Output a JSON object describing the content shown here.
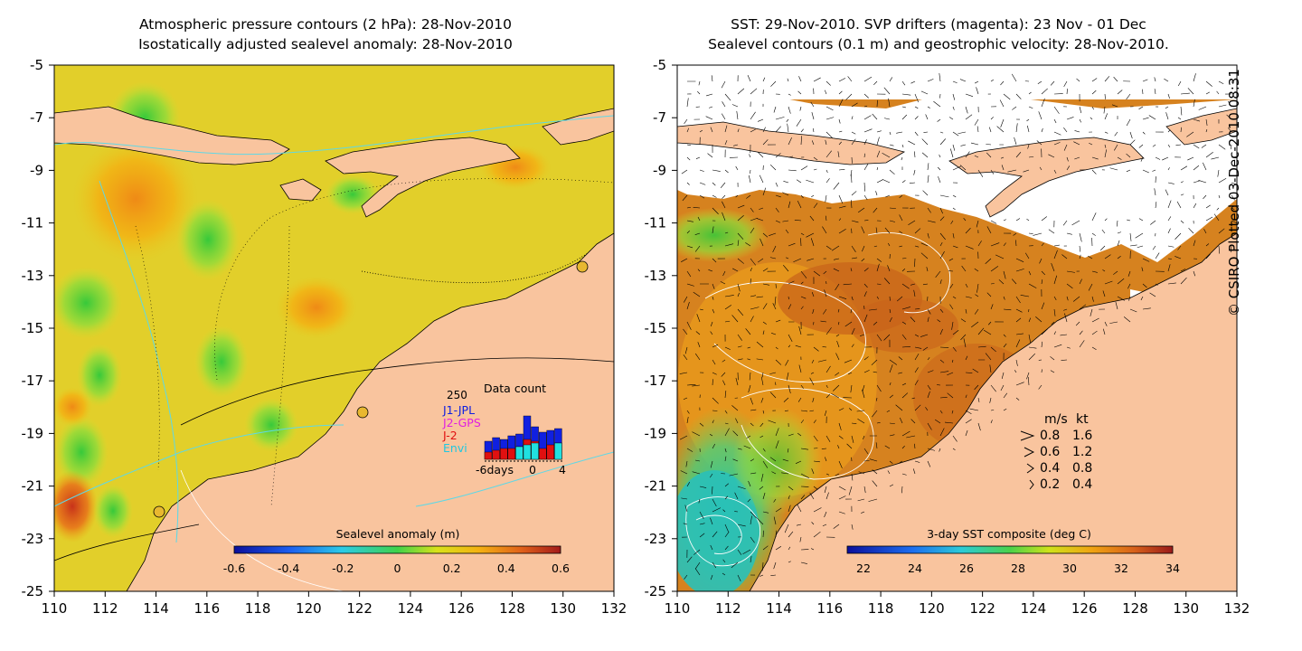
{
  "left_panel": {
    "title_lines": [
      "Atmospheric pressure contours (2 hPa): 28-Nov-2010",
      "Isostatically adjusted sealevel anomaly: 28-Nov-2010"
    ],
    "colorbar": {
      "label": "Sealevel anomaly (m)",
      "ticks": [
        "-0.6",
        "-0.4",
        "-0.2",
        "0",
        "0.2",
        "0.4",
        "0.6"
      ]
    },
    "inset": {
      "title": "Data count",
      "ymax_label": "250",
      "legend": [
        {
          "label": "J1-JPL",
          "color": "#1020e0"
        },
        {
          "label": "J2-GPS",
          "color": "#e020e0"
        },
        {
          "label": "J-2",
          "color": "#e01010"
        },
        {
          "label": "Envi",
          "color": "#20e0e0"
        }
      ],
      "xlabels": [
        "-6days",
        "0",
        "4"
      ]
    }
  },
  "right_panel": {
    "title_lines": [
      "SST: 29-Nov-2010. SVP drifters (magenta): 23 Nov - 01 Dec",
      "Sealevel contours (0.1 m) and geostrophic velocity: 28-Nov-2010."
    ],
    "colorbar": {
      "label": "3-day SST composite (deg C)",
      "ticks": [
        "22",
        "24",
        "26",
        "28",
        "30",
        "32",
        "34"
      ]
    },
    "velocity_legend": {
      "header_ms": "m/s",
      "header_kt": "kt",
      "rows": [
        {
          "ms": "0.8",
          "kt": "1.6"
        },
        {
          "ms": "0.6",
          "kt": "1.2"
        },
        {
          "ms": "0.4",
          "kt": "0.8"
        },
        {
          "ms": "0.2",
          "kt": "0.4"
        }
      ]
    }
  },
  "axes": {
    "x_ticks": [
      "110",
      "112",
      "114",
      "116",
      "118",
      "120",
      "122",
      "124",
      "126",
      "128",
      "130",
      "132"
    ],
    "y_ticks": [
      "-5",
      "-7",
      "-9",
      "-11",
      "-13",
      "-15",
      "-17",
      "-19",
      "-21",
      "-23",
      "-25"
    ]
  },
  "credit": "© CSIRO Plotted 03-Dec-2010 08:31",
  "colors": {
    "land": "#f9c49e",
    "ocean_left": "#e3cf28",
    "ocean_right": "#d47a22",
    "missing": "#ffffff",
    "contour": "#5fd8e6"
  }
}
